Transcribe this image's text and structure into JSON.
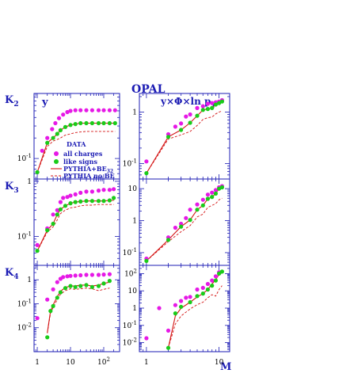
{
  "figure": {
    "experiment": "OPAL",
    "x_axis_label": "M",
    "colors": {
      "frame": "#1c1cb4",
      "all_charges": "#e619e6",
      "like_signs": "#19cc19",
      "pythia_be": "#d41414",
      "pythia_no_be": "#d41414"
    }
  },
  "legend": {
    "title": "DATA",
    "entries": [
      {
        "label": "all charges",
        "marker": "dot",
        "color": "#e619e6"
      },
      {
        "label": "like signs",
        "marker": "dot",
        "color": "#19cc19"
      },
      {
        "label": "PYTHIA+BE",
        "subscript": "32",
        "style": "solid",
        "color": "#d41414"
      },
      {
        "label": "PYTHIA no BE",
        "style": "dashed",
        "color": "#d41414"
      }
    ]
  },
  "chart_data": [
    {
      "type": "scatter",
      "row": "K2",
      "row_label": "K",
      "row_sub": "2",
      "column_title": "y",
      "xscale": "log",
      "xlim": [
        0.8,
        300
      ],
      "yscale": "log",
      "ylim": [
        0.05,
        0.9
      ],
      "y_ticks": [
        {
          "v": 0.1,
          "label": "10",
          "sup": "-1"
        }
      ],
      "series": [
        {
          "key": "all",
          "x": [
            1,
            1.4,
            2,
            2.8,
            3.5,
            4.5,
            6,
            8,
            10,
            14,
            20,
            30,
            45,
            70,
            100,
            150,
            220
          ],
          "y": [
            0.063,
            0.13,
            0.2,
            0.27,
            0.33,
            0.39,
            0.44,
            0.48,
            0.5,
            0.51,
            0.51,
            0.51,
            0.51,
            0.51,
            0.51,
            0.51,
            0.51
          ]
        },
        {
          "key": "like",
          "x": [
            1,
            2,
            3,
            4,
            5,
            7,
            10,
            14,
            20,
            30,
            45,
            70,
            100,
            150,
            220
          ],
          "y": [
            0.063,
            0.17,
            0.2,
            0.23,
            0.26,
            0.29,
            0.31,
            0.32,
            0.33,
            0.33,
            0.33,
            0.33,
            0.33,
            0.33,
            0.33
          ]
        },
        {
          "key": "be",
          "x": [
            1,
            2,
            3,
            4,
            5,
            7,
            10,
            14,
            20,
            30,
            45,
            70,
            100,
            150,
            220
          ],
          "y": [
            0.063,
            0.17,
            0.2,
            0.23,
            0.26,
            0.29,
            0.31,
            0.32,
            0.33,
            0.33,
            0.33,
            0.33,
            0.33,
            0.33,
            0.33
          ]
        },
        {
          "key": "nobe",
          "x": [
            1,
            2,
            3,
            4,
            5,
            7,
            10,
            14,
            20,
            30,
            45,
            70,
            100,
            150,
            220
          ],
          "y": [
            0.063,
            0.15,
            0.18,
            0.19,
            0.2,
            0.22,
            0.23,
            0.24,
            0.245,
            0.25,
            0.25,
            0.25,
            0.25,
            0.25,
            0.25
          ]
        }
      ]
    },
    {
      "type": "scatter",
      "row": "K2",
      "column_title": "y×Φ×ln p",
      "column_title_sub": "T",
      "xscale": "log",
      "xlim": [
        0.8,
        14
      ],
      "yscale": "log",
      "ylim": [
        0.05,
        2.3
      ],
      "y_ticks": [
        {
          "v": 0.1,
          "label": "10",
          "sup": "-1"
        },
        {
          "v": 1,
          "label": "1",
          "sup": ""
        }
      ],
      "series": [
        {
          "key": "all",
          "x": [
            1,
            2,
            2.5,
            3,
            3.5,
            4,
            5,
            6,
            7,
            8,
            9,
            10,
            11
          ],
          "y": [
            0.11,
            0.37,
            0.52,
            0.6,
            0.82,
            0.9,
            1.2,
            1.3,
            1.45,
            1.5,
            1.55,
            1.6,
            1.7
          ]
        },
        {
          "key": "like",
          "x": [
            1,
            2,
            3,
            4,
            5,
            6,
            7,
            8,
            9,
            10,
            11
          ],
          "y": [
            0.065,
            0.33,
            0.45,
            0.62,
            0.85,
            1.1,
            1.15,
            1.2,
            1.4,
            1.5,
            1.6
          ]
        },
        {
          "key": "be",
          "x": [
            1,
            2,
            3,
            4,
            5,
            6,
            7,
            8,
            9,
            10,
            11
          ],
          "y": [
            0.065,
            0.33,
            0.45,
            0.62,
            0.85,
            1.1,
            1.15,
            1.2,
            1.4,
            1.5,
            1.6
          ]
        },
        {
          "key": "nobe",
          "x": [
            1,
            2,
            3,
            4,
            5,
            6,
            7,
            8,
            9,
            10,
            11
          ],
          "y": [
            0.065,
            0.3,
            0.36,
            0.42,
            0.55,
            0.72,
            0.78,
            0.8,
            0.92,
            1.0,
            1.05
          ]
        }
      ]
    },
    {
      "type": "scatter",
      "row": "K3",
      "row_label": "K",
      "row_sub": "3",
      "xscale": "log",
      "xlim": [
        0.8,
        300
      ],
      "yscale": "log",
      "ylim": [
        0.03,
        1.1
      ],
      "y_ticks": [
        {
          "v": 0.1,
          "label": "10",
          "sup": "-1"
        },
        {
          "v": 1,
          "label": "1",
          "sup": ""
        }
      ],
      "series": [
        {
          "key": "all",
          "x": [
            1,
            2,
            3,
            4,
            5,
            6,
            8,
            10,
            14,
            20,
            30,
            45,
            70,
            100,
            150,
            200
          ],
          "y": [
            0.07,
            0.14,
            0.25,
            0.3,
            0.42,
            0.5,
            0.52,
            0.55,
            0.58,
            0.62,
            0.65,
            0.65,
            0.68,
            0.7,
            0.7,
            0.72
          ]
        },
        {
          "key": "like",
          "x": [
            1,
            2,
            3,
            4,
            5,
            7,
            10,
            14,
            20,
            30,
            45,
            70,
            100,
            150,
            200
          ],
          "y": [
            0.055,
            0.13,
            0.17,
            0.25,
            0.31,
            0.36,
            0.4,
            0.42,
            0.43,
            0.44,
            0.44,
            0.44,
            0.44,
            0.45,
            0.5
          ]
        },
        {
          "key": "be",
          "x": [
            1,
            2,
            3,
            4,
            5,
            7,
            10,
            14,
            20,
            30,
            45,
            70,
            100,
            150,
            200
          ],
          "y": [
            0.055,
            0.13,
            0.17,
            0.25,
            0.31,
            0.36,
            0.4,
            0.42,
            0.43,
            0.44,
            0.44,
            0.44,
            0.44,
            0.45,
            0.45
          ]
        },
        {
          "key": "nobe",
          "x": [
            1,
            2,
            3,
            4,
            5,
            7,
            10,
            14,
            20,
            30,
            45,
            70,
            100,
            150,
            200
          ],
          "y": [
            0.055,
            0.12,
            0.15,
            0.2,
            0.26,
            0.3,
            0.33,
            0.34,
            0.36,
            0.37,
            0.37,
            0.38,
            0.38,
            0.38,
            0.38
          ]
        }
      ]
    },
    {
      "type": "scatter",
      "row": "K3",
      "xscale": "log",
      "xlim": [
        0.8,
        14
      ],
      "yscale": "log",
      "ylim": [
        0.04,
        20
      ],
      "y_ticks": [
        {
          "v": 0.1,
          "label": "10",
          "sup": "-1"
        },
        {
          "v": 1,
          "label": "1",
          "sup": ""
        },
        {
          "v": 10,
          "label": "10",
          "sup": ""
        }
      ],
      "series": [
        {
          "key": "all",
          "x": [
            1,
            2,
            2.5,
            3,
            3.5,
            4,
            5,
            6,
            7,
            8,
            9,
            10,
            11
          ],
          "y": [
            0.065,
            0.3,
            0.6,
            0.8,
            1.2,
            2.2,
            3.2,
            4.5,
            6.5,
            7.5,
            9,
            11,
            12
          ]
        },
        {
          "key": "like",
          "x": [
            1,
            2,
            3,
            4,
            5,
            6,
            7,
            8,
            9,
            10,
            11
          ],
          "y": [
            0.055,
            0.25,
            0.65,
            1.05,
            2.2,
            3,
            4.8,
            5.5,
            7,
            10,
            11
          ]
        },
        {
          "key": "be",
          "x": [
            1,
            2,
            3,
            4,
            5,
            6,
            7,
            8,
            9,
            10,
            11
          ],
          "y": [
            0.055,
            0.25,
            0.65,
            1.05,
            2.2,
            3,
            4.8,
            5.5,
            7,
            10,
            11
          ]
        },
        {
          "key": "nobe",
          "x": [
            1,
            2,
            3,
            4,
            5,
            6,
            7,
            8,
            9,
            10,
            11
          ],
          "y": [
            0.055,
            0.22,
            0.45,
            0.7,
            1.3,
            1.6,
            2.6,
            3.0,
            3.4,
            4.5,
            5
          ]
        }
      ]
    },
    {
      "type": "scatter",
      "row": "K4",
      "row_label": "K",
      "row_sub": "4",
      "xscale": "log",
      "xlim": [
        0.8,
        300
      ],
      "yscale": "log",
      "ylim": [
        0.001,
        4
      ],
      "y_ticks": [
        {
          "v": 0.01,
          "label": "10",
          "sup": "-2"
        },
        {
          "v": 0.1,
          "label": "10",
          "sup": "-1"
        },
        {
          "v": 1,
          "label": "1",
          "sup": ""
        }
      ],
      "series": [
        {
          "key": "all",
          "x": [
            1,
            2,
            3,
            4,
            5,
            6,
            8,
            10,
            14,
            20,
            30,
            45,
            70,
            100,
            150
          ],
          "y": [
            0.025,
            0.15,
            0.4,
            0.8,
            1.1,
            1.3,
            1.4,
            1.45,
            1.5,
            1.55,
            1.6,
            1.6,
            1.6,
            1.65,
            1.7
          ]
        },
        {
          "key": "like",
          "x": [
            2,
            2.5,
            3,
            4,
            5,
            7,
            10,
            14,
            20,
            30,
            45,
            70,
            100,
            150
          ],
          "y": [
            0.004,
            0.05,
            0.08,
            0.18,
            0.3,
            0.45,
            0.55,
            0.5,
            0.55,
            0.6,
            0.5,
            0.55,
            0.7,
            0.9
          ]
        },
        {
          "key": "be",
          "x": [
            2,
            2.5,
            3,
            4,
            5,
            7,
            10,
            14,
            20,
            30,
            45,
            70,
            100,
            150
          ],
          "y": [
            0.006,
            0.05,
            0.09,
            0.2,
            0.33,
            0.48,
            0.55,
            0.55,
            0.6,
            0.6,
            0.55,
            0.6,
            0.7,
            0.8
          ]
        },
        {
          "key": "nobe",
          "x": [
            2,
            2.5,
            3,
            4,
            5,
            7,
            10,
            14,
            20,
            30,
            45,
            70,
            100,
            150
          ],
          "y": [
            0.006,
            0.04,
            0.07,
            0.15,
            0.25,
            0.35,
            0.42,
            0.4,
            0.42,
            0.45,
            0.42,
            0.35,
            0.4,
            0.45
          ]
        }
      ]
    },
    {
      "type": "scatter",
      "row": "K4",
      "xscale": "log",
      "xlim": [
        0.8,
        14
      ],
      "yscale": "log",
      "ylim": [
        0.003,
        300
      ],
      "y_ticks": [
        {
          "v": 0.01,
          "label": "10",
          "sup": "-2"
        },
        {
          "v": 0.1,
          "label": "10",
          "sup": "-1"
        },
        {
          "v": 1,
          "label": "1",
          "sup": ""
        },
        {
          "v": 10,
          "label": "10",
          "sup": ""
        },
        {
          "v": 100,
          "label": "10",
          "sup": "2"
        }
      ],
      "series": [
        {
          "key": "all",
          "x": [
            1,
            1.5,
            2,
            2.5,
            3,
            3.5,
            4,
            5,
            6,
            7,
            8,
            9,
            10
          ],
          "y": [
            0.018,
            1.0,
            0.05,
            1.5,
            2.6,
            4.0,
            4.5,
            12,
            15,
            25,
            40,
            70,
            120
          ]
        },
        {
          "key": "like",
          "x": [
            2,
            2.5,
            3,
            4,
            5,
            6,
            7,
            8,
            9,
            10,
            11
          ],
          "y": [
            0.005,
            0.5,
            1.2,
            2.2,
            5,
            7,
            12,
            20,
            40,
            100,
            130
          ]
        },
        {
          "key": "be",
          "x": [
            2,
            2.5,
            3,
            4,
            5,
            6,
            7,
            8,
            9,
            10,
            11
          ],
          "y": [
            0.005,
            0.35,
            1.0,
            2.2,
            4.5,
            7,
            12,
            25,
            45,
            90,
            110
          ]
        },
        {
          "key": "nobe",
          "x": [
            2,
            2.5,
            3,
            4,
            5,
            6,
            7,
            8,
            9,
            10,
            11
          ],
          "y": [
            0.005,
            0.12,
            0.35,
            0.9,
            1.6,
            2.2,
            4,
            6,
            5,
            12,
            20
          ]
        }
      ]
    }
  ],
  "x_ticks": {
    "left": [
      {
        "v": 1,
        "label": "1",
        "sup": ""
      },
      {
        "v": 10,
        "label": "10",
        "sup": ""
      },
      {
        "v": 100,
        "label": "10",
        "sup": "2"
      }
    ],
    "right": [
      {
        "v": 1,
        "label": "1",
        "sup": ""
      },
      {
        "v": 10,
        "label": "10",
        "sup": ""
      }
    ]
  }
}
